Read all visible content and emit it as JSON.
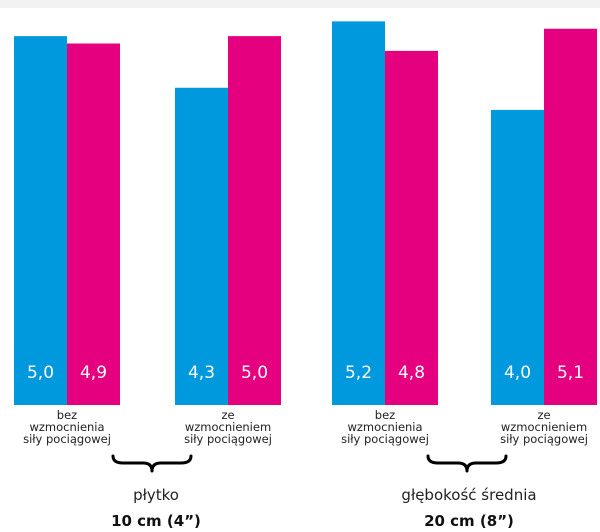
{
  "colors": {
    "series_a": "#0099dd",
    "series_b": "#e4007f",
    "value_text": "#ffffff"
  },
  "chart_data": {
    "type": "bar",
    "categories": [
      "bez wzmocnienia siły pociągowej",
      "ze wzmocnieniem siły pociągowej",
      "bez wzmocnienia siły pociągowej",
      "ze wzmocnieniem siły pociągowej"
    ],
    "category_lines": [
      [
        "bez",
        "wzmocnienia",
        "siły pociągowej"
      ],
      [
        "ze",
        "wzmocnieniem",
        "siły pociągowej"
      ],
      [
        "bez",
        "wzmocnienia",
        "siły pociągowej"
      ],
      [
        "ze",
        "wzmocnieniem",
        "siły pociągowej"
      ]
    ],
    "series": [
      {
        "values": [
          5.0,
          4.3,
          5.2,
          4.0
        ],
        "labels": [
          "5,0",
          "4,3",
          "5,2",
          "4,0"
        ],
        "color": "#0099dd"
      },
      {
        "values": [
          4.9,
          5.0,
          4.8,
          5.1
        ],
        "labels": [
          "4,9",
          "5,0",
          "4,8",
          "5,1"
        ],
        "color": "#e4007f"
      }
    ],
    "groups": [
      {
        "name": "płytko",
        "depth": "10 cm (4”)",
        "categories": [
          0,
          1
        ]
      },
      {
        "name": "głębokość średnia",
        "depth": "20 cm (8”)",
        "categories": [
          2,
          3
        ]
      }
    ],
    "ylim": [
      0,
      5.3
    ],
    "grid": false
  }
}
